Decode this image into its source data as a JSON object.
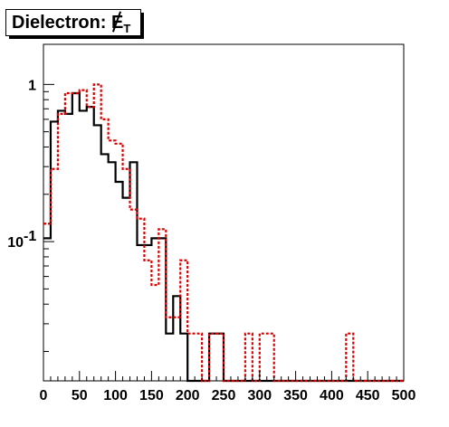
{
  "chart_data": {
    "type": "histogram",
    "title": "Dielectron: E",
    "title_subscript": "T",
    "xlabel": "",
    "ylabel": "",
    "xlim": [
      0,
      500
    ],
    "ylim": [
      0.013,
      1.8
    ],
    "yscale": "log",
    "grid": false,
    "bin_width": 10,
    "x_ticks": [
      0,
      50,
      100,
      150,
      200,
      250,
      300,
      350,
      400,
      450,
      500
    ],
    "y_ticks": [
      {
        "value": 1,
        "label": "1",
        "sup": ""
      },
      {
        "value": 0.1,
        "label": "10",
        "sup": "-1"
      }
    ],
    "series": [
      {
        "style": "solid",
        "color": "#000000",
        "values": [
          0.105,
          0.58,
          0.68,
          0.65,
          0.88,
          0.68,
          0.72,
          0.55,
          0.36,
          0.32,
          0.24,
          0.19,
          0.32,
          0.095,
          0.095,
          0.105,
          0.105,
          0.026,
          0.045,
          0.026,
          0.0,
          0.0,
          0.0,
          0.026,
          0.026,
          0.0,
          0.0,
          0.0,
          0.0,
          0.0,
          0.0,
          0.0,
          0.0,
          0.0,
          0.0,
          0.0,
          0.0,
          0.0,
          0.0,
          0.0,
          0.0,
          0.0,
          0.0,
          0.0,
          0.0,
          0.0,
          0.0,
          0.0,
          0.0,
          0.0
        ]
      },
      {
        "style": "dotted",
        "color": "#dd0000",
        "values": [
          0.13,
          0.29,
          0.65,
          0.88,
          0.88,
          0.92,
          0.72,
          1.0,
          0.6,
          0.44,
          0.42,
          0.29,
          0.16,
          0.14,
          0.076,
          0.053,
          0.12,
          0.033,
          0.033,
          0.076,
          0.026,
          0.026,
          0.0,
          0.026,
          0.026,
          0.0,
          0.0,
          0.0,
          0.026,
          0.0,
          0.026,
          0.026,
          0.0,
          0.0,
          0.0,
          0.0,
          0.0,
          0.0,
          0.0,
          0.0,
          0.0,
          0.0,
          0.026,
          0.0,
          0.0,
          0.0,
          0.0,
          0.0,
          0.0,
          0.0
        ]
      }
    ]
  }
}
